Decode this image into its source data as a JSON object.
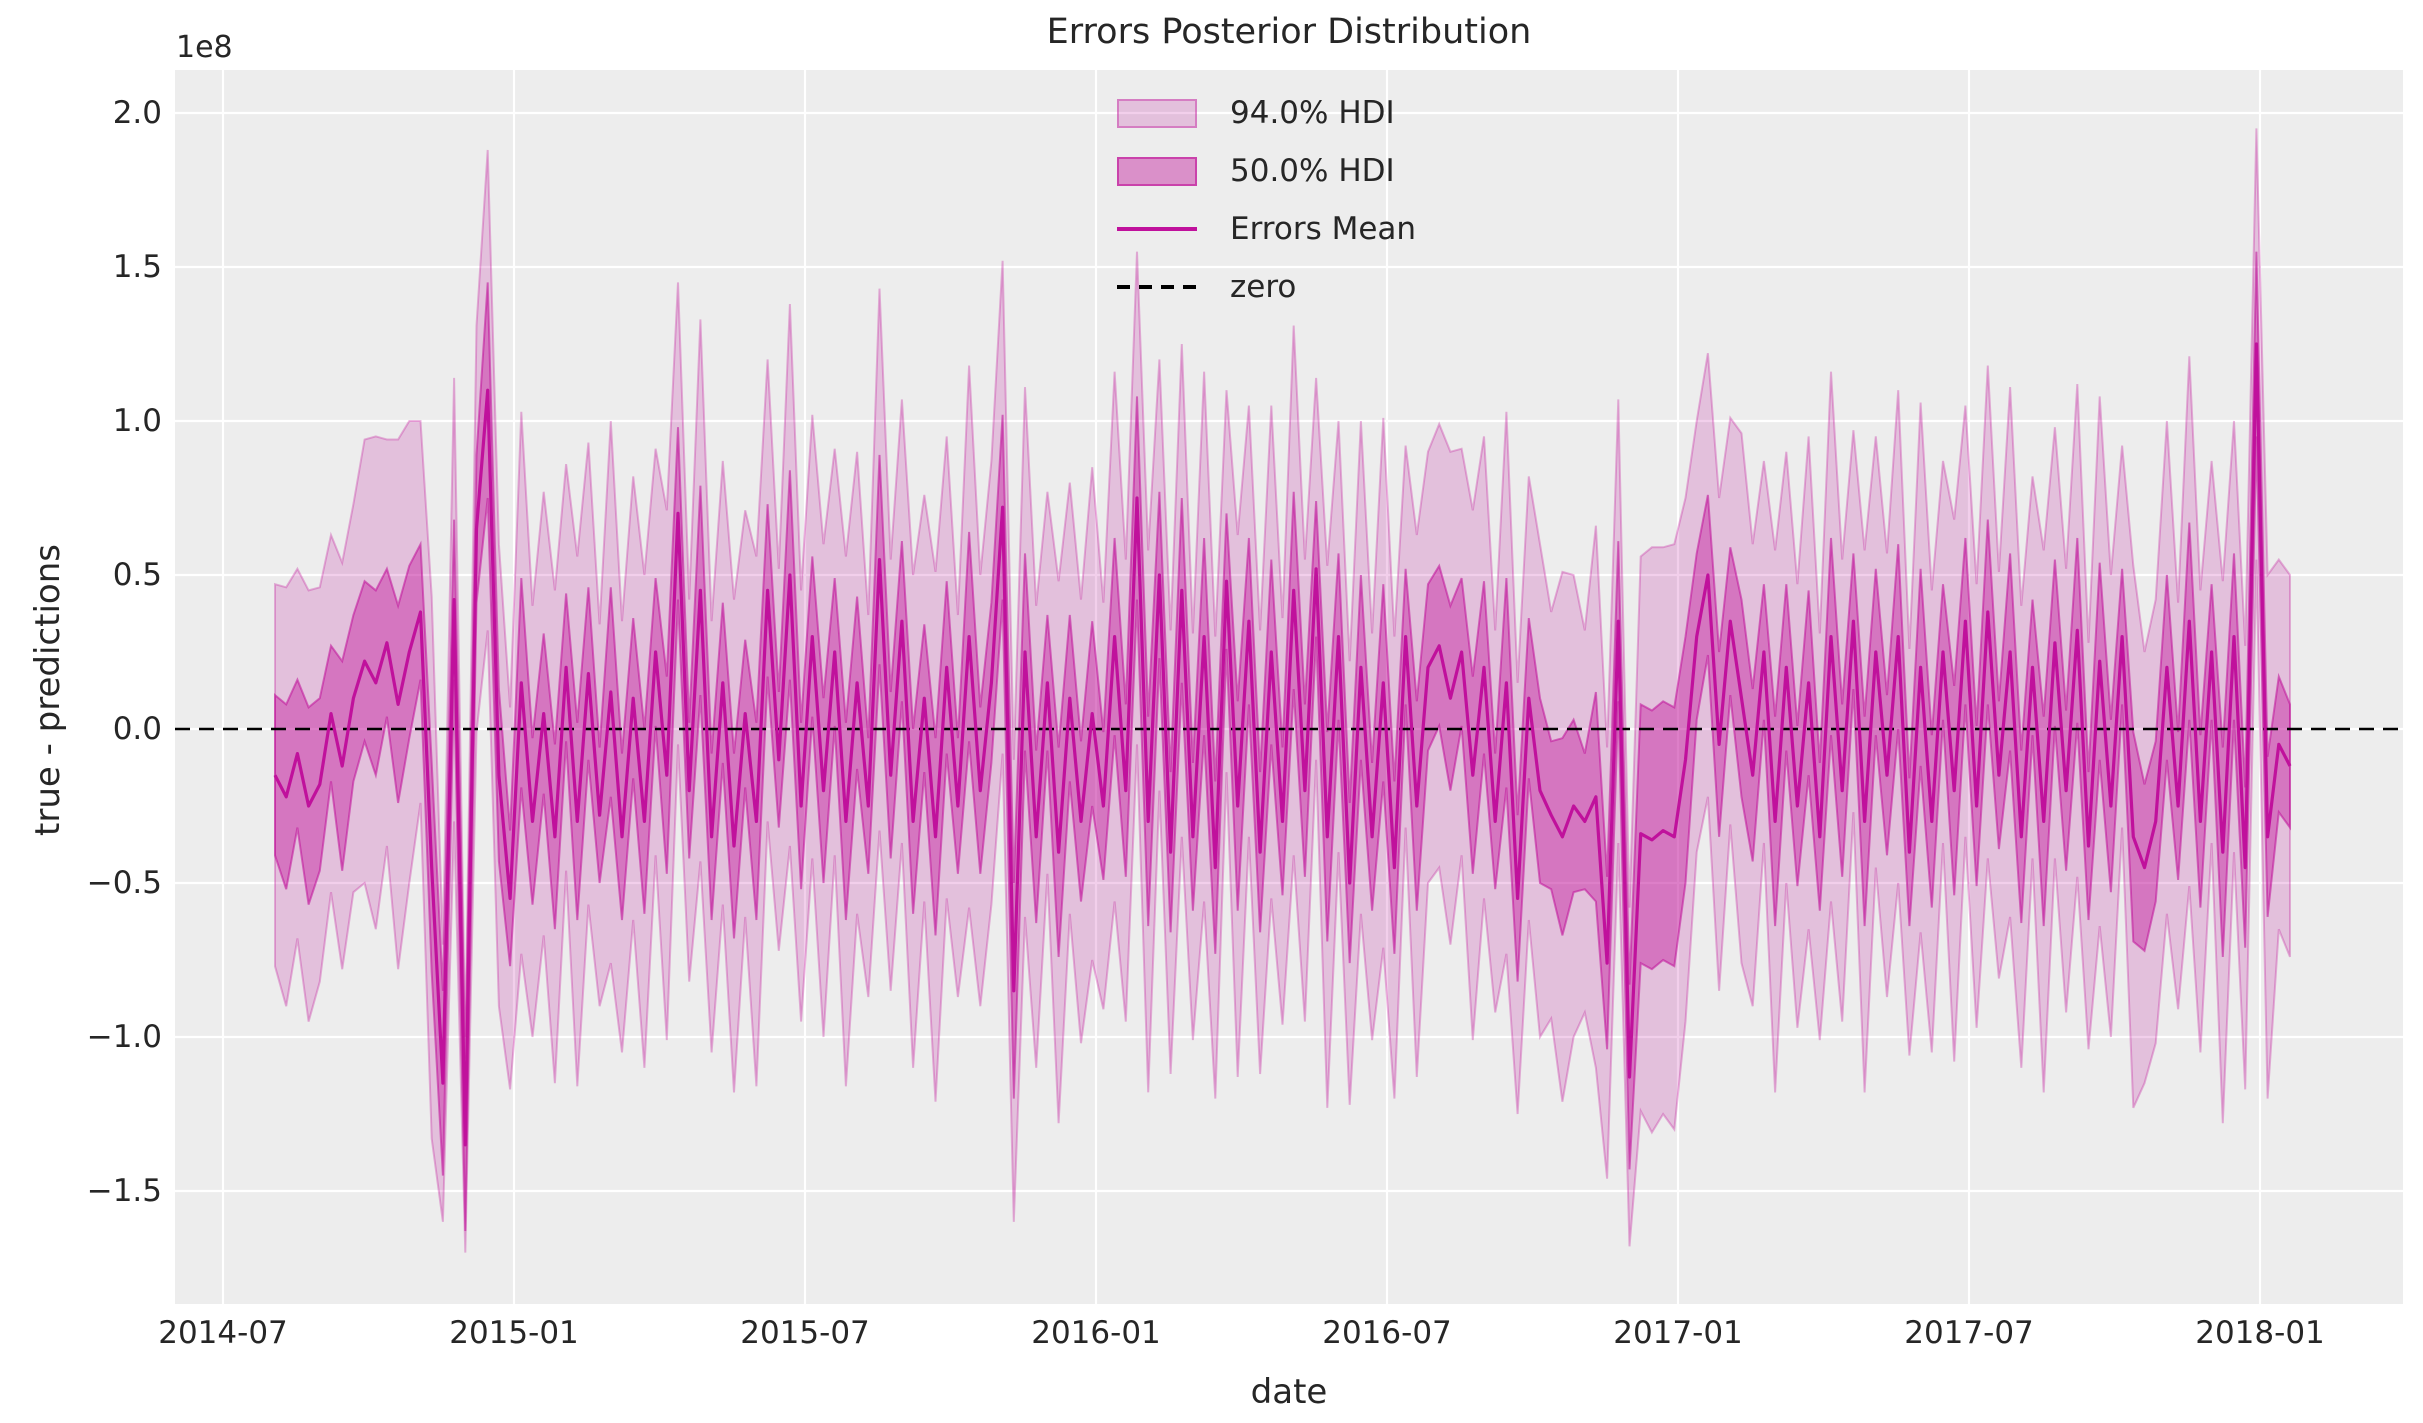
{
  "figure": {
    "title": "Errors Posterior Distribution",
    "xlabel": "date",
    "ylabel": "true - predictions",
    "offset_text": "1e8",
    "background_color": "#ffffff",
    "axes_background_color": "#ededed",
    "grid_color": "#ffffff",
    "text_color": "#262626",
    "accent_color": "#c0119c",
    "zero_line_color": "#000000"
  },
  "legend": {
    "items": [
      {
        "label": "94.0% HDI",
        "swatch": "band-light-patch"
      },
      {
        "label": "50.0% HDI",
        "swatch": "band-dark-patch"
      },
      {
        "label": "Errors Mean",
        "swatch": "solid-line"
      },
      {
        "label": "zero",
        "swatch": "dashed-line"
      }
    ]
  },
  "chart_data": {
    "type": "line",
    "title": "Errors Posterior Distribution",
    "xlabel": "date",
    "ylabel": "true - predictions",
    "y_unit": "1e8",
    "grid": true,
    "legend_position": "upper center",
    "x_start_date": "2014-08-03",
    "x_step_days": 7,
    "n_points": 181,
    "xlim": [
      "2014-06-01",
      "2018-03-28"
    ],
    "ylim": [
      -1.87,
      2.14
    ],
    "x_tick_labels": [
      "2014-07",
      "2015-01",
      "2015-07",
      "2016-01",
      "2016-07",
      "2017-01",
      "2017-07",
      "2018-01"
    ],
    "y_tick_values": [
      2.0,
      1.5,
      1.0,
      0.5,
      0.0,
      -0.5,
      -1.0,
      -1.5
    ],
    "y_tick_labels": [
      "2.0",
      "1.5",
      "1.0",
      "0.5",
      "0.0",
      "−0.5",
      "−1.0",
      "−1.5"
    ],
    "zero_line_value": 0,
    "series": [
      {
        "name": "Errors Mean",
        "role": "mean",
        "color": "#c0119c",
        "values": [
          -0.15,
          -0.22,
          -0.08,
          -0.25,
          -0.18,
          0.05,
          -0.12,
          0.1,
          0.22,
          0.15,
          0.28,
          0.08,
          0.25,
          0.38,
          -0.45,
          -1.15,
          0.42,
          -1.35,
          0.65,
          1.1,
          -0.15,
          -0.55,
          0.15,
          -0.3,
          0.05,
          -0.35,
          0.2,
          -0.3,
          0.18,
          -0.28,
          0.12,
          -0.35,
          0.1,
          -0.3,
          0.25,
          -0.15,
          0.7,
          -0.2,
          0.45,
          -0.35,
          0.15,
          -0.38,
          0.05,
          -0.3,
          0.45,
          -0.1,
          0.5,
          -0.25,
          0.3,
          -0.2,
          0.25,
          -0.3,
          0.15,
          -0.25,
          0.55,
          -0.15,
          0.35,
          -0.3,
          0.1,
          -0.35,
          0.2,
          -0.25,
          0.3,
          -0.2,
          0.15,
          0.72,
          -0.85,
          0.25,
          -0.35,
          0.15,
          -0.4,
          0.1,
          -0.3,
          0.05,
          -0.25,
          0.3,
          -0.2,
          0.75,
          -0.3,
          0.5,
          -0.4,
          0.45,
          -0.35,
          0.3,
          -0.45,
          0.48,
          -0.25,
          0.35,
          -0.4,
          0.25,
          -0.3,
          0.45,
          -0.2,
          0.52,
          -0.35,
          0.3,
          -0.5,
          0.2,
          -0.35,
          0.15,
          -0.45,
          0.3,
          -0.25,
          0.2,
          0.27,
          0.1,
          0.25,
          -0.15,
          0.2,
          -0.3,
          0.15,
          -0.55,
          0.1,
          -0.2,
          -0.28,
          -0.35,
          -0.25,
          -0.3,
          -0.22,
          -0.76,
          0.35,
          -1.13,
          -0.34,
          -0.36,
          -0.33,
          -0.35,
          -0.1,
          0.3,
          0.5,
          -0.05,
          0.35,
          0.1,
          -0.15,
          0.25,
          -0.3,
          0.2,
          -0.25,
          0.15,
          -0.35,
          0.3,
          -0.2,
          0.35,
          -0.3,
          0.25,
          -0.15,
          0.3,
          -0.4,
          0.2,
          -0.3,
          0.25,
          -0.2,
          0.35,
          -0.25,
          0.38,
          -0.15,
          0.25,
          -0.35,
          0.2,
          -0.3,
          0.28,
          -0.2,
          0.32,
          -0.38,
          0.22,
          -0.25,
          0.3,
          -0.35,
          -0.45,
          -0.3,
          0.2,
          -0.25,
          0.35,
          -0.3,
          0.25,
          -0.4,
          0.3,
          -0.45,
          1.25,
          -0.35,
          -0.05,
          -0.12
        ]
      },
      {
        "name": "50.0% HDI",
        "role": "hdi50_half_width",
        "color": "rgba(192,17,153,0.42)",
        "values": [
          0.26,
          0.3,
          0.24,
          0.32,
          0.28,
          0.22,
          0.34,
          0.27,
          0.26,
          0.3,
          0.24,
          0.32,
          0.28,
          0.22,
          0.34,
          0.3,
          0.26,
          0.28,
          0.24,
          0.35,
          0.28,
          0.22,
          0.34,
          0.27,
          0.26,
          0.3,
          0.24,
          0.32,
          0.28,
          0.22,
          0.34,
          0.27,
          0.26,
          0.3,
          0.24,
          0.32,
          0.28,
          0.22,
          0.34,
          0.27,
          0.26,
          0.3,
          0.24,
          0.32,
          0.28,
          0.22,
          0.34,
          0.27,
          0.26,
          0.3,
          0.24,
          0.32,
          0.28,
          0.22,
          0.34,
          0.27,
          0.26,
          0.3,
          0.24,
          0.32,
          0.28,
          0.22,
          0.34,
          0.27,
          0.26,
          0.3,
          0.35,
          0.32,
          0.28,
          0.22,
          0.34,
          0.27,
          0.26,
          0.3,
          0.24,
          0.32,
          0.28,
          0.33,
          0.34,
          0.27,
          0.26,
          0.3,
          0.24,
          0.32,
          0.28,
          0.22,
          0.34,
          0.27,
          0.26,
          0.3,
          0.24,
          0.32,
          0.28,
          0.22,
          0.34,
          0.27,
          0.26,
          0.3,
          0.24,
          0.32,
          0.28,
          0.22,
          0.34,
          0.27,
          0.26,
          0.3,
          0.24,
          0.32,
          0.28,
          0.22,
          0.34,
          0.27,
          0.26,
          0.3,
          0.24,
          0.32,
          0.28,
          0.22,
          0.34,
          0.28,
          0.26,
          0.3,
          0.42,
          0.42,
          0.42,
          0.42,
          0.4,
          0.27,
          0.26,
          0.3,
          0.24,
          0.32,
          0.28,
          0.22,
          0.34,
          0.27,
          0.26,
          0.3,
          0.24,
          0.32,
          0.28,
          0.22,
          0.34,
          0.27,
          0.26,
          0.3,
          0.24,
          0.32,
          0.28,
          0.22,
          0.34,
          0.27,
          0.26,
          0.3,
          0.24,
          0.32,
          0.28,
          0.22,
          0.34,
          0.27,
          0.26,
          0.3,
          0.24,
          0.32,
          0.28,
          0.22,
          0.34,
          0.27,
          0.26,
          0.3,
          0.24,
          0.32,
          0.28,
          0.22,
          0.34,
          0.27,
          0.26,
          0.3,
          0.26,
          0.22,
          0.2
        ]
      },
      {
        "name": "94.0% HDI",
        "role": "hdi94_half_width",
        "color": "rgba(192,17,153,0.20)",
        "values": [
          0.62,
          0.68,
          0.6,
          0.7,
          0.64,
          0.58,
          0.66,
          0.63,
          0.72,
          0.8,
          0.66,
          0.86,
          0.75,
          0.62,
          0.88,
          0.45,
          0.72,
          0.35,
          0.66,
          0.78,
          0.75,
          0.62,
          0.88,
          0.7,
          0.72,
          0.8,
          0.66,
          0.86,
          0.75,
          0.62,
          0.88,
          0.7,
          0.72,
          0.8,
          0.66,
          0.86,
          0.75,
          0.62,
          0.88,
          0.7,
          0.72,
          0.8,
          0.66,
          0.86,
          0.75,
          0.62,
          0.88,
          0.7,
          0.72,
          0.8,
          0.66,
          0.86,
          0.75,
          0.62,
          0.88,
          0.7,
          0.72,
          0.8,
          0.66,
          0.86,
          0.75,
          0.62,
          0.88,
          0.7,
          0.72,
          0.8,
          0.75,
          0.86,
          0.75,
          0.62,
          0.88,
          0.7,
          0.72,
          0.8,
          0.66,
          0.86,
          0.75,
          0.8,
          0.88,
          0.7,
          0.72,
          0.8,
          0.66,
          0.86,
          0.75,
          0.62,
          0.88,
          0.7,
          0.72,
          0.8,
          0.66,
          0.86,
          0.75,
          0.62,
          0.88,
          0.7,
          0.72,
          0.8,
          0.66,
          0.86,
          0.75,
          0.62,
          0.88,
          0.7,
          0.72,
          0.8,
          0.66,
          0.86,
          0.75,
          0.62,
          0.88,
          0.7,
          0.72,
          0.8,
          0.66,
          0.86,
          0.75,
          0.62,
          0.88,
          0.7,
          0.72,
          0.55,
          0.9,
          0.95,
          0.92,
          0.95,
          0.85,
          0.7,
          0.72,
          0.8,
          0.66,
          0.86,
          0.75,
          0.62,
          0.88,
          0.7,
          0.72,
          0.8,
          0.66,
          0.86,
          0.75,
          0.62,
          0.88,
          0.7,
          0.72,
          0.8,
          0.66,
          0.86,
          0.75,
          0.62,
          0.88,
          0.7,
          0.72,
          0.8,
          0.66,
          0.86,
          0.75,
          0.62,
          0.88,
          0.7,
          0.72,
          0.8,
          0.66,
          0.86,
          0.75,
          0.62,
          0.88,
          0.7,
          0.72,
          0.8,
          0.66,
          0.86,
          0.75,
          0.62,
          0.88,
          0.7,
          0.72,
          0.7,
          0.85,
          0.6,
          0.62
        ]
      }
    ]
  }
}
